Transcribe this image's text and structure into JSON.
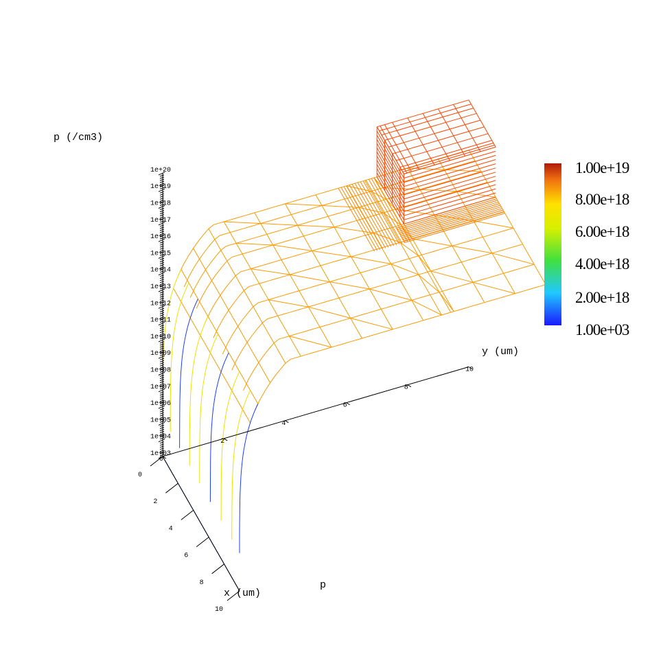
{
  "chart_data": {
    "type": "surface",
    "variable": "p",
    "zlabel": "p (/cm3)",
    "xlabel": "x (um)",
    "ylabel": "y (um)",
    "xlim": [
      0,
      10
    ],
    "ylim": [
      0,
      10
    ],
    "z_scale": "log",
    "zlim": [
      1000.0,
      1e+20
    ],
    "x_ticks": [
      "0",
      "2",
      "4",
      "6",
      "8",
      "10"
    ],
    "y_ticks": [
      "0",
      "2",
      "4",
      "6",
      "8",
      "10"
    ],
    "z_ticks": [
      "1e+03",
      "1e+04",
      "1e+05",
      "1e+06",
      "1e+07",
      "1e+08",
      "1e+09",
      "1e+10",
      "1e+11",
      "1e+12",
      "1e+13",
      "1e+14",
      "1e+15",
      "1e+16",
      "1e+17",
      "1e+18",
      "1e+19",
      "1e+20"
    ],
    "colorbar": {
      "labels": [
        "1.00e+19",
        "8.00e+18",
        "6.00e+18",
        "4.00e+18",
        "2.00e+18",
        "1.00e+03"
      ],
      "colors": [
        "#b01a0a",
        "#e86010",
        "#f0e000",
        "#70d000",
        "#20e0d0",
        "#2030f0"
      ]
    },
    "surface": {
      "plateau_level": "1e+16",
      "contact_level": "1e+19",
      "contact_region": {
        "x": [
          0,
          3.5
        ],
        "y": [
          7,
          10
        ]
      },
      "mesh_color": "#ff9900",
      "contact_mesh_color": "#ff4400",
      "edge_colors": [
        "#f0e000",
        "#1a3cff"
      ]
    }
  }
}
